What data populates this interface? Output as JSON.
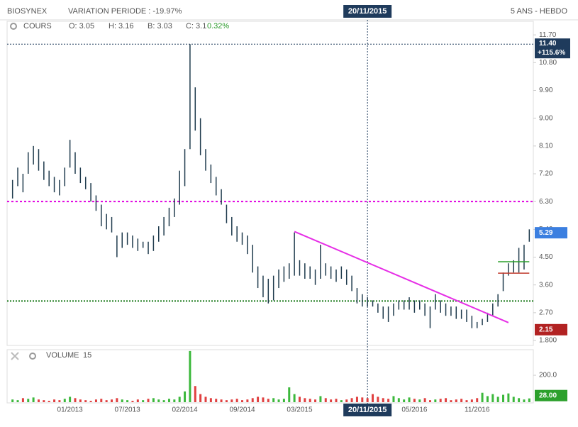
{
  "header": {
    "title": "BIOSYNEX",
    "variation": "VARIATION PERIODE : -19.97%",
    "period": "5 ANS - HEBDO"
  },
  "chart_data": {
    "type": "hilo",
    "legend": {
      "label": "COURS",
      "items": [
        "O: 3.05",
        "H: 3.16",
        "B: 3.03",
        "C: 3.1"
      ],
      "change": "0.32%"
    },
    "categories": [
      null,
      null,
      null,
      null,
      null,
      null,
      null,
      null,
      null,
      null,
      null,
      "01/2013",
      null,
      null,
      null,
      null,
      null,
      null,
      null,
      null,
      null,
      null,
      "07/2013",
      null,
      null,
      null,
      null,
      null,
      null,
      null,
      null,
      null,
      null,
      "02/2014",
      null,
      null,
      null,
      null,
      null,
      null,
      null,
      null,
      null,
      null,
      "09/2014",
      null,
      null,
      null,
      null,
      null,
      null,
      null,
      null,
      null,
      null,
      "03/2015",
      null,
      null,
      null,
      null,
      null,
      null,
      null,
      null,
      null,
      null,
      null,
      null,
      null,
      null,
      null,
      null,
      null,
      null,
      null,
      null,
      null,
      "05/2016",
      null,
      null,
      null,
      null,
      null,
      null,
      null,
      null,
      null,
      null,
      null,
      "11/2016",
      null,
      null,
      null,
      null,
      null,
      null,
      null,
      null,
      null,
      null
    ],
    "series": [
      {
        "name": "COURS",
        "color": "#1f3b4d",
        "low": [
          6.4,
          6.8,
          6.6,
          7.2,
          7.5,
          7.3,
          7.0,
          6.8,
          6.6,
          6.5,
          6.8,
          7.4,
          7.2,
          6.9,
          6.7,
          6.3,
          6.0,
          5.5,
          5.4,
          5.3,
          4.5,
          4.8,
          4.9,
          4.8,
          4.7,
          4.8,
          4.6,
          4.7,
          5.0,
          5.2,
          5.5,
          5.8,
          6.2,
          6.8,
          8.0,
          8.6,
          7.8,
          7.3,
          6.9,
          6.5,
          6.2,
          5.6,
          5.2,
          5.0,
          4.9,
          4.6,
          4.0,
          3.5,
          3.2,
          3.0,
          3.1,
          3.5,
          3.7,
          3.8,
          3.9,
          3.9,
          3.8,
          3.8,
          3.6,
          3.8,
          3.9,
          3.8,
          3.7,
          3.8,
          3.6,
          3.4,
          3.0,
          2.9,
          2.9,
          2.9,
          2.7,
          2.5,
          2.4,
          2.6,
          2.8,
          2.8,
          2.8,
          2.7,
          2.8,
          2.6,
          2.2,
          2.8,
          2.7,
          2.6,
          2.6,
          2.5,
          2.5,
          2.4,
          2.2,
          2.2,
          2.3,
          2.4,
          2.6,
          2.9,
          3.4,
          3.9,
          4.0,
          4.0,
          4.1,
          5.0
        ],
        "high": [
          7.0,
          7.4,
          7.2,
          7.9,
          8.1,
          8.0,
          7.6,
          7.3,
          7.1,
          7.0,
          7.4,
          8.3,
          7.9,
          7.4,
          7.1,
          6.9,
          6.5,
          6.2,
          5.9,
          5.8,
          5.2,
          5.3,
          5.3,
          5.2,
          5.1,
          5.0,
          5.0,
          5.2,
          5.5,
          5.8,
          6.1,
          6.4,
          7.3,
          8.0,
          11.4,
          10.0,
          9.0,
          8.0,
          7.5,
          7.1,
          6.7,
          6.2,
          5.8,
          5.5,
          5.3,
          5.2,
          4.9,
          4.2,
          3.9,
          3.8,
          3.9,
          4.1,
          4.2,
          4.3,
          5.3,
          4.4,
          4.3,
          4.2,
          4.1,
          4.9,
          4.3,
          4.2,
          4.1,
          4.2,
          4.1,
          3.9,
          3.5,
          3.3,
          3.2,
          3.1,
          3.0,
          2.9,
          2.9,
          3.0,
          3.1,
          3.1,
          3.2,
          3.1,
          3.1,
          3.0,
          2.9,
          3.3,
          3.1,
          3.0,
          2.9,
          2.9,
          2.8,
          2.8,
          2.6,
          2.4,
          2.5,
          2.7,
          3.0,
          3.3,
          4.0,
          4.3,
          4.4,
          4.8,
          4.9,
          5.4
        ]
      }
    ],
    "ylim": [
      1.64,
      12.14
    ],
    "yticks": [
      {
        "value": 1.8,
        "label": "1.800"
      },
      {
        "value": 2.7,
        "label": "2.70"
      },
      {
        "value": 3.6,
        "label": "3.60"
      },
      {
        "value": 4.5,
        "label": "4.50"
      },
      {
        "value": 5.4,
        "label": "5.40"
      },
      {
        "value": 6.3,
        "label": "6.30"
      },
      {
        "value": 7.2,
        "label": "7.20"
      },
      {
        "value": 8.1,
        "label": "8.10"
      },
      {
        "value": 9,
        "label": "9.00"
      },
      {
        "value": 9.9,
        "label": "9.90"
      },
      {
        "value": 10.8,
        "label": "10.80"
      },
      {
        "value": 11.7,
        "label": "11.70"
      }
    ],
    "crosshair": {
      "index": 68,
      "label": "20/11/2015"
    },
    "high_line": {
      "value": 11.4,
      "label": "11.40",
      "change": "+115.6%",
      "color": "#1f3b5c"
    },
    "magenta_line": {
      "value": 6.3,
      "color": "#e000e0"
    },
    "support_line": {
      "value": 3.08,
      "color": "#1a7a1a"
    },
    "trendline": {
      "from_index": 54,
      "from": 5.33,
      "to_index": 95,
      "to": 2.38,
      "color": "#e62ee6"
    },
    "short_lines": [
      {
        "value": 4.35,
        "from_index": 93,
        "to_index": 99,
        "color": "#2ca02c"
      },
      {
        "value": 3.98,
        "from_index": 93,
        "to_index": 99,
        "color": "#c0392b"
      }
    ],
    "last_price": {
      "value": 5.29,
      "color": "#3b7fe0"
    },
    "low_price": {
      "value": 2.15,
      "color": "#b22222"
    },
    "volume": {
      "name": "VOLUME",
      "period": 15,
      "color_up": "#3cb83c",
      "color_down": "#e04040",
      "values": [
        20,
        15,
        30,
        25,
        35,
        20,
        15,
        10,
        20,
        15,
        25,
        40,
        30,
        20,
        15,
        10,
        20,
        25,
        15,
        20,
        30,
        20,
        15,
        10,
        20,
        15,
        25,
        30,
        20,
        15,
        25,
        20,
        40,
        80,
        380,
        120,
        60,
        40,
        30,
        25,
        20,
        15,
        20,
        25,
        15,
        20,
        30,
        40,
        35,
        25,
        30,
        20,
        25,
        110,
        60,
        40,
        30,
        25,
        20,
        45,
        30,
        20,
        25,
        15,
        20,
        30,
        40,
        35,
        30,
        60,
        40,
        30,
        25,
        45,
        30,
        20,
        35,
        25,
        20,
        30,
        15,
        20,
        25,
        30,
        15,
        20,
        25,
        15,
        20,
        30,
        70,
        45,
        60,
        40,
        55,
        65,
        40,
        30,
        20,
        28
      ],
      "ylim": [
        0,
        390
      ],
      "yticks": [
        {
          "value": 200,
          "label": "200.0"
        }
      ],
      "last": {
        "value": 28,
        "label": "28.00",
        "color": "#2ca02c"
      }
    }
  }
}
